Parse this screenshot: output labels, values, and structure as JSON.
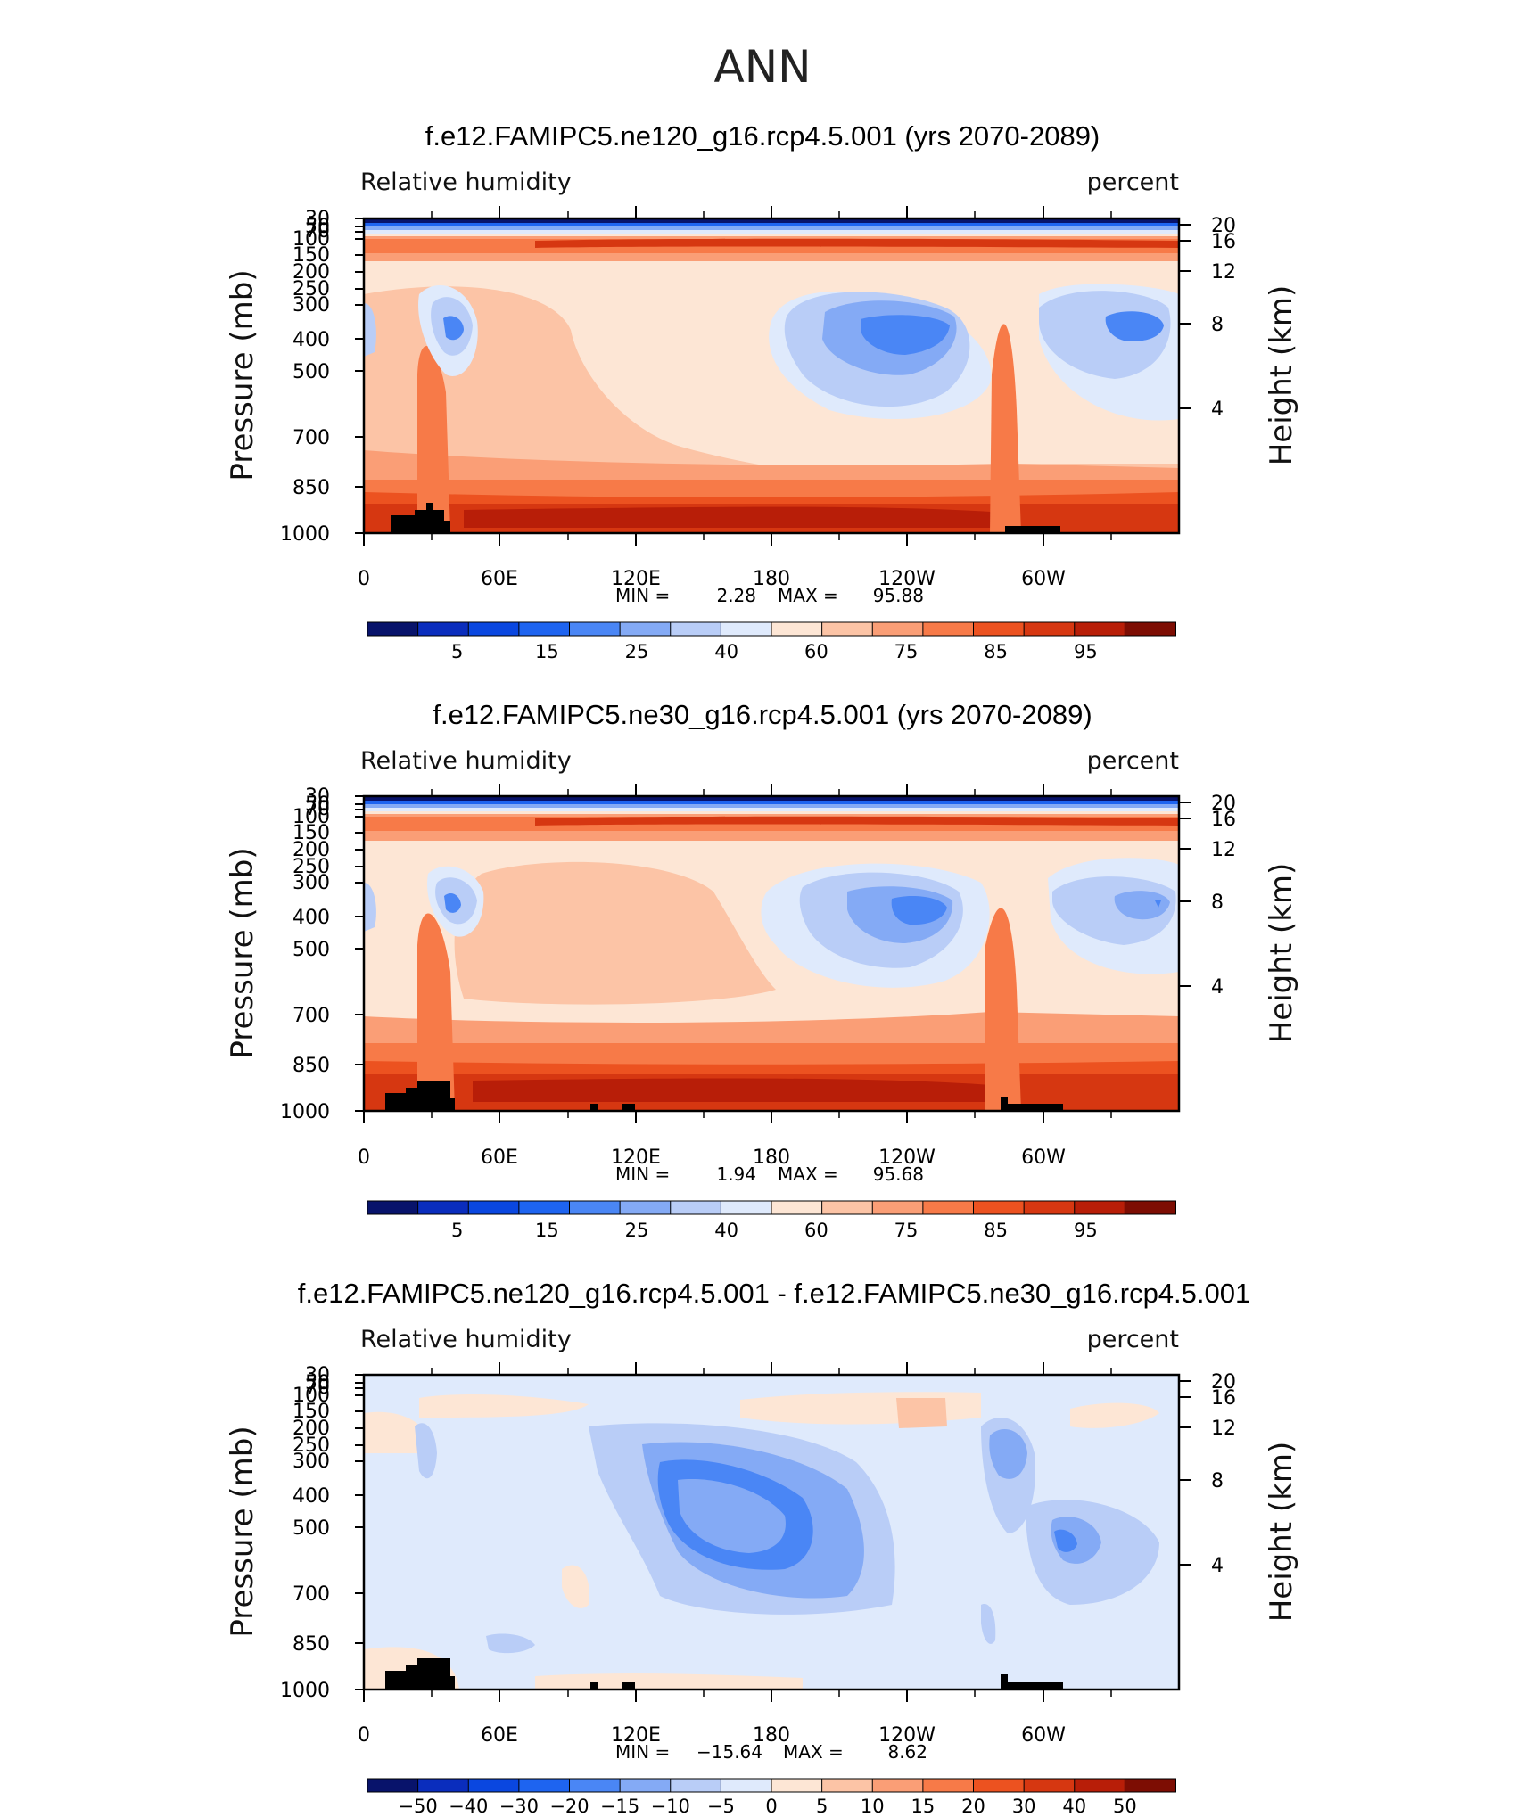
{
  "figure": {
    "suptitle": "ANN"
  },
  "chart_data": [
    {
      "type": "heatmap",
      "title": "f.e12.FAMIPC5.ne120_g16.rcp4.5.001 (yrs 2070-2089)",
      "variable": "Relative humidity",
      "units": "percent",
      "xlabel": "",
      "ylabel": "Pressure (mb)",
      "y2label": "Height (km)",
      "xticks": [
        "0",
        "60E",
        "120E",
        "180",
        "120W",
        "60W"
      ],
      "xlim": [
        0,
        360
      ],
      "yticks": [
        "30",
        "50",
        "70",
        "100",
        "150",
        "200",
        "250",
        "300",
        "400",
        "500",
        "700",
        "850",
        "1000"
      ],
      "ylim": [
        1000,
        30
      ],
      "y2ticks": [
        "20",
        "16",
        "12",
        "8",
        "4"
      ],
      "stats": {
        "min_label": "MIN =",
        "min": "2.28",
        "max_label": "MAX =",
        "max": "95.88"
      },
      "colorbar": {
        "labels": [
          "5",
          "15",
          "25",
          "40",
          "60",
          "75",
          "85",
          "95"
        ],
        "colors": [
          "#08136b",
          "#0a2dbd",
          "#0a47e0",
          "#1e64f0",
          "#4a86f5",
          "#84aaf5",
          "#b9cdf7",
          "#dfeafc",
          "#fde6d5",
          "#fcc4a6",
          "#fa9e76",
          "#f77a48",
          "#ec5220",
          "#d63711",
          "#b81e08",
          "#7d0d03"
        ]
      }
    },
    {
      "type": "heatmap",
      "title": "f.e12.FAMIPC5.ne30_g16.rcp4.5.001 (yrs 2070-2089)",
      "variable": "Relative humidity",
      "units": "percent",
      "xlabel": "",
      "ylabel": "Pressure (mb)",
      "y2label": "Height (km)",
      "xticks": [
        "0",
        "60E",
        "120E",
        "180",
        "120W",
        "60W"
      ],
      "xlim": [
        0,
        360
      ],
      "yticks": [
        "30",
        "50",
        "70",
        "100",
        "150",
        "200",
        "250",
        "300",
        "400",
        "500",
        "700",
        "850",
        "1000"
      ],
      "ylim": [
        1000,
        30
      ],
      "y2ticks": [
        "20",
        "16",
        "12",
        "8",
        "4"
      ],
      "stats": {
        "min_label": "MIN =",
        "min": "1.94",
        "max_label": "MAX =",
        "max": "95.68"
      },
      "colorbar": {
        "labels": [
          "5",
          "15",
          "25",
          "40",
          "60",
          "75",
          "85",
          "95"
        ],
        "colors": [
          "#08136b",
          "#0a2dbd",
          "#0a47e0",
          "#1e64f0",
          "#4a86f5",
          "#84aaf5",
          "#b9cdf7",
          "#dfeafc",
          "#fde6d5",
          "#fcc4a6",
          "#fa9e76",
          "#f77a48",
          "#ec5220",
          "#d63711",
          "#b81e08",
          "#7d0d03"
        ]
      }
    },
    {
      "type": "heatmap",
      "title": "f.e12.FAMIPC5.ne120_g16.rcp4.5.001 - f.e12.FAMIPC5.ne30_g16.rcp4.5.001",
      "variable": "Relative humidity",
      "units": "percent",
      "xlabel": "",
      "ylabel": "Pressure (mb)",
      "y2label": "Height (km)",
      "xticks": [
        "0",
        "60E",
        "120E",
        "180",
        "120W",
        "60W"
      ],
      "xlim": [
        0,
        360
      ],
      "yticks": [
        "30",
        "50",
        "70",
        "100",
        "150",
        "200",
        "250",
        "300",
        "400",
        "500",
        "700",
        "850",
        "1000"
      ],
      "ylim": [
        1000,
        30
      ],
      "y2ticks": [
        "20",
        "16",
        "12",
        "8",
        "4"
      ],
      "stats": {
        "min_label": "MIN =",
        "min": "−15.64",
        "max_label": "MAX =",
        "max": "8.62"
      },
      "colorbar": {
        "labels": [
          "−50",
          "−40",
          "−30",
          "−20",
          "−15",
          "−10",
          "−5",
          "0",
          "5",
          "10",
          "15",
          "20",
          "30",
          "40",
          "50"
        ],
        "colors": [
          "#08136b",
          "#0a2dbd",
          "#0a47e0",
          "#1e64f0",
          "#4a86f5",
          "#84aaf5",
          "#b9cdf7",
          "#dfeafc",
          "#fde6d5",
          "#fcc4a6",
          "#fa9e76",
          "#f77a48",
          "#ec5220",
          "#d63711",
          "#b81e08",
          "#7d0d03"
        ]
      }
    }
  ]
}
